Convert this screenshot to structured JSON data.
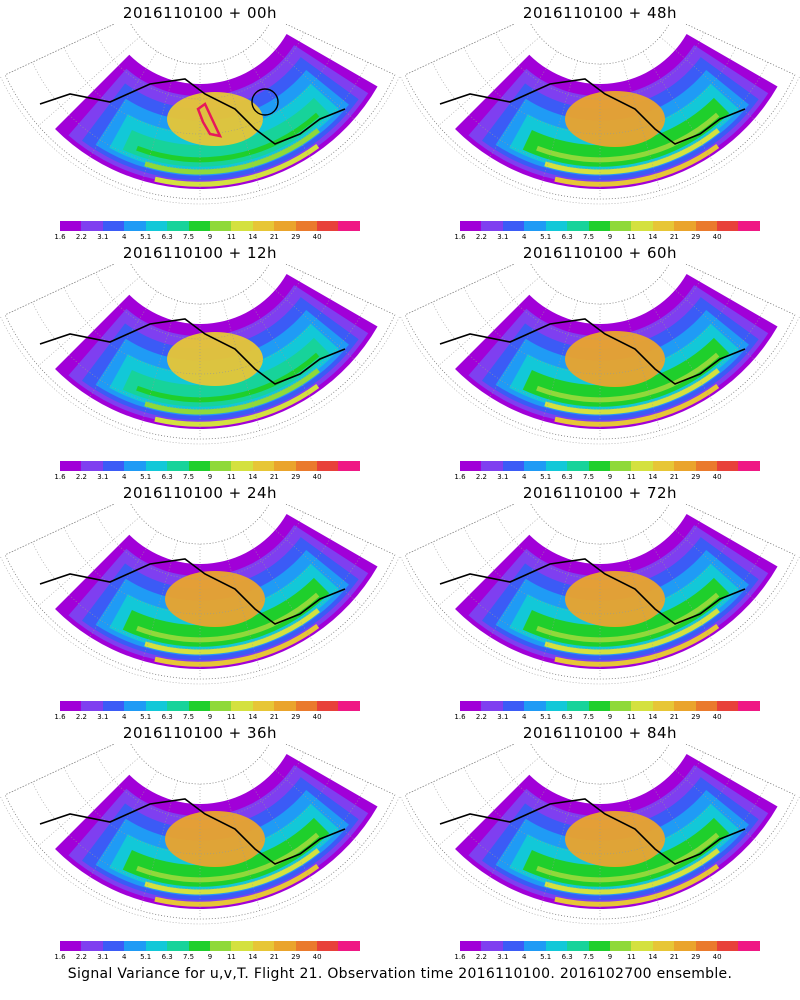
{
  "footer_caption": "Signal Variance for u,v,T. Flight 21. Observation time 2016110100. 2016102700 ensemble.",
  "colorbar": {
    "colors": [
      "#a100d8",
      "#7f3ff0",
      "#3b5bf6",
      "#1f9bf5",
      "#12c8d8",
      "#17d39a",
      "#1fcf2c",
      "#8fd93a",
      "#d4e13f",
      "#e7c636",
      "#eaa42c",
      "#ea7a2d",
      "#e8413a",
      "#ef1884"
    ],
    "labels": [
      "1.6",
      "2.2",
      "3.1",
      "4",
      "5.1",
      "6.3",
      "7.5",
      "9",
      "11",
      "14",
      "21",
      "29",
      "40"
    ]
  },
  "chart_data": [
    {
      "type": "heatmap",
      "title": "2016110100 + 00h",
      "legend_values": [
        "1.6",
        "2.2",
        "3.1",
        "4",
        "5.1",
        "6.3",
        "7.5",
        "9",
        "11",
        "14",
        "21",
        "29",
        "40"
      ],
      "max_level": "14",
      "annotations": [
        "flight track (magenta)",
        "circle marker"
      ]
    },
    {
      "type": "heatmap",
      "title": "2016110100 + 48h",
      "legend_values": [
        "1.6",
        "2.2",
        "3.1",
        "4",
        "5.1",
        "6.3",
        "7.5",
        "9",
        "11",
        "14",
        "21",
        "29",
        "40"
      ],
      "max_level": "21"
    },
    {
      "type": "heatmap",
      "title": "2016110100 + 12h",
      "legend_values": [
        "1.6",
        "2.2",
        "3.1",
        "4",
        "5.1",
        "6.3",
        "7.5",
        "9",
        "11",
        "14",
        "21",
        "29",
        "40"
      ],
      "max_level": "14"
    },
    {
      "type": "heatmap",
      "title": "2016110100 + 60h",
      "legend_values": [
        "1.6",
        "2.2",
        "3.1",
        "4",
        "5.1",
        "6.3",
        "7.5",
        "9",
        "11",
        "14",
        "21",
        "29",
        "40"
      ],
      "max_level": "21"
    },
    {
      "type": "heatmap",
      "title": "2016110100 + 24h",
      "legend_values": [
        "1.6",
        "2.2",
        "3.1",
        "4",
        "5.1",
        "6.3",
        "7.5",
        "9",
        "11",
        "14",
        "21",
        "29",
        "40"
      ],
      "max_level": "21"
    },
    {
      "type": "heatmap",
      "title": "2016110100 + 72h",
      "legend_values": [
        "1.6",
        "2.2",
        "3.1",
        "4",
        "5.1",
        "6.3",
        "7.5",
        "9",
        "11",
        "14",
        "21",
        "29",
        "40"
      ],
      "max_level": "21"
    },
    {
      "type": "heatmap",
      "title": "2016110100 + 36h",
      "legend_values": [
        "1.6",
        "2.2",
        "3.1",
        "4",
        "5.1",
        "6.3",
        "7.5",
        "9",
        "11",
        "14",
        "21",
        "29",
        "40"
      ],
      "max_level": "21"
    },
    {
      "type": "heatmap",
      "title": "2016110100 + 84h",
      "legend_values": [
        "1.6",
        "2.2",
        "3.1",
        "4",
        "5.1",
        "6.3",
        "7.5",
        "9",
        "11",
        "14",
        "21",
        "29",
        "40"
      ],
      "max_level": "21"
    }
  ]
}
